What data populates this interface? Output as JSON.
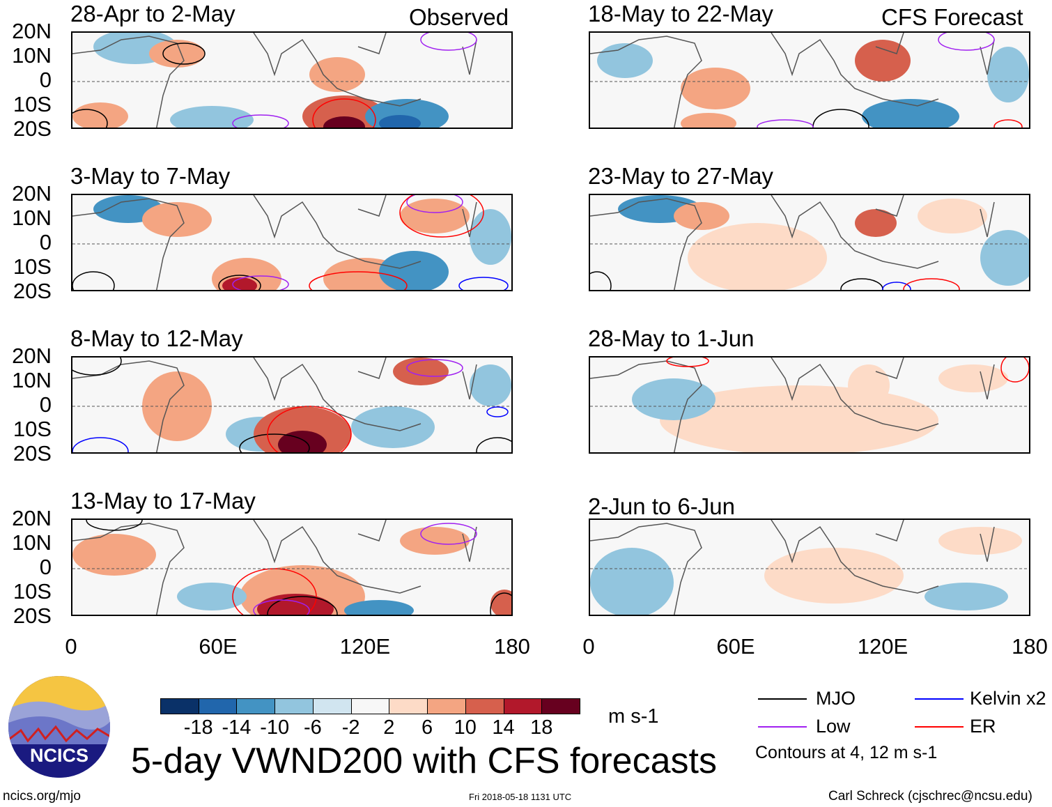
{
  "headers": {
    "observed": "Observed",
    "forecast": "CFS Forecast"
  },
  "panels_observed": [
    "28-Apr to 2-May",
    "3-May to 7-May",
    "8-May to 12-May",
    "13-May to 17-May"
  ],
  "panels_forecast": [
    "18-May to 22-May",
    "23-May to 27-May",
    "28-May to 1-Jun",
    "2-Jun to 6-Jun"
  ],
  "lat_ticks": [
    "20N",
    "10N",
    "0",
    "10S",
    "20S"
  ],
  "lon_ticks": [
    "0",
    "60E",
    "120E",
    "180"
  ],
  "colorbar": {
    "colors": [
      "#0a3168",
      "#2166ac",
      "#4393c3",
      "#92c5de",
      "#d1e5f0",
      "#f7f7f7",
      "#fddbc7",
      "#f4a582",
      "#d6604d",
      "#b2182b",
      "#67001f"
    ],
    "labels": [
      "-18",
      "-14",
      "-10",
      "-6",
      "-2",
      "2",
      "6",
      "10",
      "14",
      "18"
    ],
    "units": "m s-1"
  },
  "title": "5-day VWND200 with CFS forecasts",
  "legend": {
    "items": [
      {
        "label": "MJO",
        "color": "#000000"
      },
      {
        "label": "Kelvin x2",
        "color": "#0000ff"
      },
      {
        "label": "Low",
        "color": "#a020f0"
      },
      {
        "label": "ER",
        "color": "#ff0000"
      }
    ],
    "note": "Contours at 4, 12 m s-1"
  },
  "logo_text": "NCICS",
  "footer": {
    "url": "ncics.org/mjo",
    "timestamp": "Fri 2018-05-18 1131 UTC",
    "credit": "Carl Schreck (cjschrec@ncsu.edu)"
  }
}
